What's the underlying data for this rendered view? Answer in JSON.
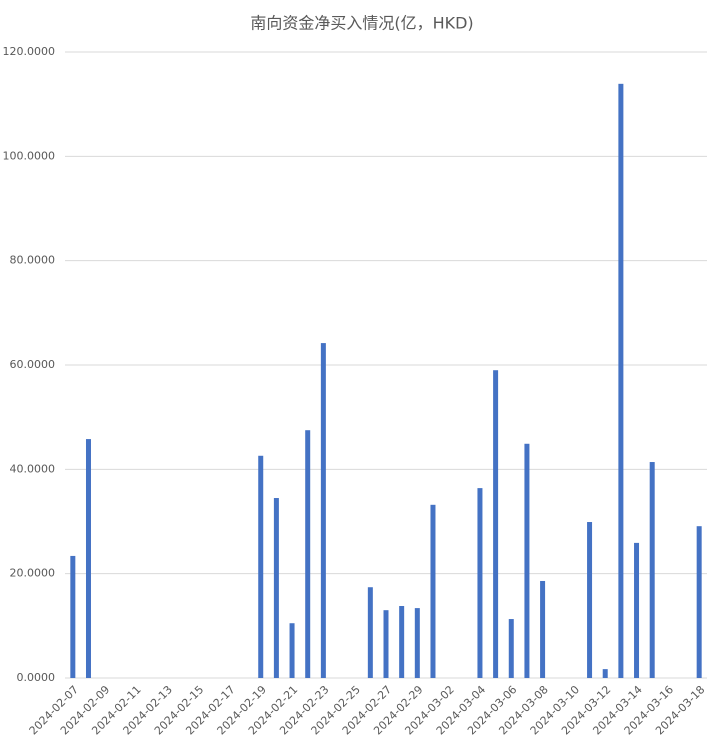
{
  "chart_data": {
    "type": "bar",
    "title": "南向资金净买入情况(亿，HKD)",
    "categories": [
      "2024-02-07",
      null,
      "2024-02-09",
      null,
      "2024-02-11",
      null,
      "2024-02-13",
      null,
      "2024-02-15",
      null,
      "2024-02-17",
      null,
      "2024-02-19",
      null,
      "2024-02-21",
      null,
      "2024-02-23",
      null,
      "2024-02-25",
      null,
      "2024-02-27",
      null,
      "2024-02-29",
      null,
      "2024-03-02",
      null,
      "2024-03-04",
      null,
      "2024-03-06",
      null,
      "2024-03-08",
      null,
      "2024-03-10",
      null,
      "2024-03-12",
      null,
      "2024-03-14",
      null,
      "2024-03-16",
      null,
      "2024-03-18"
    ],
    "values": [
      23.4,
      45.8,
      null,
      null,
      null,
      null,
      null,
      null,
      null,
      null,
      null,
      null,
      42.6,
      34.5,
      10.5,
      47.5,
      64.2,
      null,
      null,
      17.4,
      13.0,
      13.8,
      13.4,
      33.2,
      null,
      null,
      36.4,
      59.0,
      11.3,
      44.9,
      18.6,
      null,
      null,
      29.9,
      1.7,
      113.9,
      25.9,
      41.4,
      null,
      null,
      29.1
    ],
    "color": "#4472c4",
    "ylim": [
      0,
      120
    ],
    "yticks": [
      {
        "value": 0,
        "label": "0.0000"
      },
      {
        "value": 20,
        "label": "20.0000"
      },
      {
        "value": 40,
        "label": "40.0000"
      },
      {
        "value": 60,
        "label": "60.0000"
      },
      {
        "value": 80,
        "label": "80.0000"
      },
      {
        "value": 100,
        "label": "100.0000"
      },
      {
        "value": 120,
        "label": "120.0000"
      }
    ],
    "grid": true
  }
}
